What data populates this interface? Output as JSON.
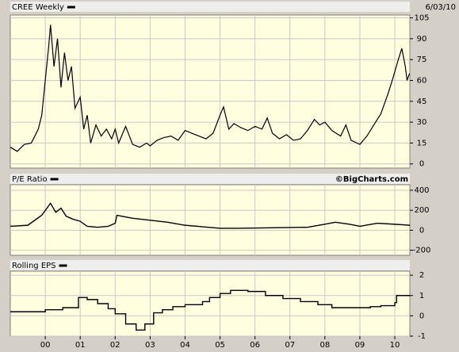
{
  "chart_data": [
    {
      "type": "line",
      "series": [
        {
          "name": "CREE Weekly",
          "color": "#000000",
          "x": [
            1999.0,
            1999.2,
            1999.4,
            1999.6,
            1999.8,
            1999.9,
            2000.0,
            2000.1,
            2000.15,
            2000.25,
            2000.35,
            2000.45,
            2000.55,
            2000.65,
            2000.75,
            2000.85,
            2001.0,
            2001.1,
            2001.2,
            2001.3,
            2001.45,
            2001.6,
            2001.75,
            2001.9,
            2002.0,
            2002.1,
            2002.3,
            2002.5,
            2002.7,
            2002.9,
            2003.0,
            2003.2,
            2003.4,
            2003.6,
            2003.8,
            2004.0,
            2004.2,
            2004.4,
            2004.6,
            2004.8,
            2005.0,
            2005.1,
            2005.25,
            2005.4,
            2005.6,
            2005.8,
            2006.0,
            2006.2,
            2006.35,
            2006.5,
            2006.7,
            2006.9,
            2007.1,
            2007.3,
            2007.5,
            2007.7,
            2007.85,
            2008.0,
            2008.2,
            2008.45,
            2008.6,
            2008.75,
            2009.0,
            2009.2,
            2009.4,
            2009.6,
            2009.8,
            2009.95,
            2010.1,
            2010.2,
            2010.3,
            2010.35,
            2010.42
          ],
          "values": [
            12,
            9,
            14,
            15,
            25,
            35,
            60,
            85,
            100,
            70,
            90,
            55,
            80,
            60,
            70,
            40,
            48,
            25,
            35,
            15,
            28,
            20,
            25,
            18,
            25,
            15,
            27,
            14,
            12,
            15,
            13,
            17,
            19,
            20,
            17,
            24,
            22,
            20,
            18,
            22,
            35,
            41,
            25,
            29,
            26,
            24,
            27,
            25,
            33,
            22,
            18,
            21,
            17,
            18,
            24,
            32,
            28,
            30,
            24,
            20,
            28,
            17,
            14,
            20,
            28,
            36,
            50,
            62,
            75,
            83,
            70,
            60,
            65
          ]
        }
      ],
      "annotation": "6/03/10",
      "xlim": [
        1999.0,
        2010.43
      ],
      "ylim": [
        -3,
        107
      ],
      "yticks": [
        0,
        15,
        30,
        45,
        60,
        75,
        90,
        105
      ],
      "grid": true
    },
    {
      "type": "line",
      "series": [
        {
          "name": "P/E Ratio",
          "color": "#000000",
          "x": [
            1999.0,
            1999.5,
            1999.9,
            2000.15,
            2000.3,
            2000.45,
            2000.6,
            2000.8,
            2001.0,
            2001.2,
            2001.5,
            2001.8,
            2002.0,
            2002.05,
            2002.5,
            2003.5,
            2004.0,
            2005.0,
            2005.5,
            2006.5,
            2007.5,
            2008.0,
            2008.3,
            2008.7,
            2009.0,
            2009.5,
            2010.0,
            2010.43
          ],
          "values": [
            40,
            50,
            150,
            270,
            180,
            220,
            140,
            110,
            90,
            40,
            30,
            40,
            70,
            150,
            120,
            80,
            50,
            20,
            20,
            25,
            30,
            60,
            80,
            60,
            40,
            70,
            60,
            50
          ]
        }
      ],
      "annotation": "©BigCharts.com",
      "xlim": [
        1999.0,
        2010.43
      ],
      "ylim": [
        -250,
        455
      ],
      "yticks": [
        -200,
        0,
        200,
        400
      ],
      "grid": true
    },
    {
      "type": "line",
      "step": true,
      "series": [
        {
          "name": "Rolling EPS",
          "color": "#000000",
          "x": [
            1999.0,
            2000.0,
            2000.5,
            2000.95,
            2001.2,
            2001.5,
            2001.8,
            2002.0,
            2002.3,
            2002.6,
            2002.85,
            2003.1,
            2003.35,
            2003.65,
            2004.0,
            2004.5,
            2004.7,
            2005.0,
            2005.3,
            2005.8,
            2006.3,
            2006.8,
            2007.3,
            2007.8,
            2008.2,
            2008.8,
            2009.3,
            2009.6,
            2010.0,
            2010.05
          ],
          "values": [
            0.2,
            0.3,
            0.4,
            0.9,
            0.8,
            0.6,
            0.35,
            0.1,
            -0.4,
            -0.7,
            -0.4,
            0.15,
            0.3,
            0.45,
            0.55,
            0.7,
            0.9,
            1.1,
            1.25,
            1.2,
            1.0,
            0.85,
            0.7,
            0.55,
            0.4,
            0.4,
            0.45,
            0.5,
            0.65,
            1.0
          ]
        }
      ],
      "xlim": [
        1999.0,
        2010.43
      ],
      "ylim": [
        -1,
        2.2
      ],
      "yticks": [
        -1,
        0,
        1,
        2
      ],
      "grid": true,
      "xticks": [
        {
          "value": 2000,
          "label": "00"
        },
        {
          "value": 2001,
          "label": "01"
        },
        {
          "value": 2002,
          "label": "02"
        },
        {
          "value": 2003,
          "label": "03"
        },
        {
          "value": 2004,
          "label": "04"
        },
        {
          "value": 2005,
          "label": "05"
        },
        {
          "value": 2006,
          "label": "06"
        },
        {
          "value": 2007,
          "label": "07"
        },
        {
          "value": 2008,
          "label": "08"
        },
        {
          "value": 2009,
          "label": "09"
        },
        {
          "value": 2010,
          "label": "10"
        }
      ]
    }
  ]
}
